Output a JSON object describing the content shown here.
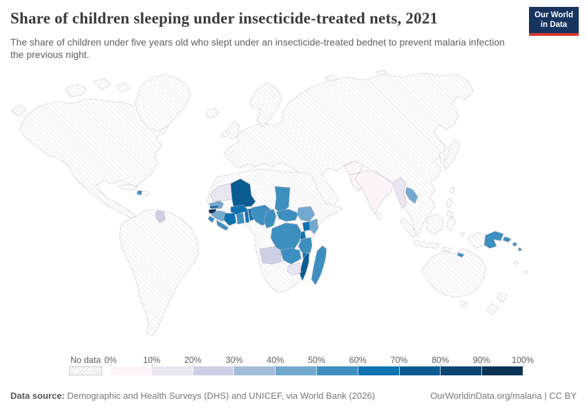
{
  "header": {
    "title": "Share of children sleeping under insecticide-treated nets, 2021",
    "subtitle": "The share of children under five years old who slept under an insecticide-treated bednet to prevent malaria infection the previous night.",
    "logo": {
      "line1": "Our World",
      "line2": "in Data",
      "bg_color": "#16345f",
      "accent_color": "#dd392c"
    }
  },
  "chart_data": {
    "type": "choropleth_map",
    "metric": "Share of children under five who slept under an insecticide-treated bednet the previous night",
    "year": "2021",
    "legend": {
      "no_data_label": "No data",
      "tick_labels": [
        "0%",
        "10%",
        "20%",
        "30%",
        "40%",
        "50%",
        "60%",
        "70%",
        "80%",
        "90%",
        "100%"
      ],
      "bin_colors": [
        "#fdf4f9",
        "#e9e5f1",
        "#cdd0e5",
        "#a3bcd9",
        "#74a9cf",
        "#3d8fc0",
        "#0f72b0",
        "#0b5c93",
        "#0c4675",
        "#0a3356"
      ],
      "no_data_hatch_line_color": "#d7d4dd",
      "border_color": "#b7b4c6"
    },
    "countries": [
      {
        "id": "mauritania",
        "name": "Mauritania",
        "value_bin": "10-20%",
        "color": "#e9e5f1"
      },
      {
        "id": "mali",
        "name": "Mali",
        "value_bin": "70-80%",
        "color": "#0b5c93"
      },
      {
        "id": "senegal",
        "name": "Senegal",
        "value_bin": "40-50%",
        "color": "#74a9cf"
      },
      {
        "id": "gambia",
        "name": "Gambia",
        "value_bin": "70-80%",
        "color": "#0b5c93"
      },
      {
        "id": "guinea-bissau",
        "name": "Guinea-Bissau",
        "value_bin": "90-100%",
        "color": "#0a3356"
      },
      {
        "id": "guinea",
        "name": "Guinea",
        "value_bin": "40-50%",
        "color": "#74a9cf"
      },
      {
        "id": "sierra-leone",
        "name": "Sierra Leone",
        "value_bin": "50-60%",
        "color": "#3d8fc0"
      },
      {
        "id": "liberia",
        "name": "Liberia",
        "value_bin": "50-60%",
        "color": "#3d8fc0"
      },
      {
        "id": "cote-divoire",
        "name": "Cote d'Ivoire",
        "value_bin": "60-70%",
        "color": "#0f72b0"
      },
      {
        "id": "ghana",
        "name": "Ghana",
        "value_bin": "50-60%",
        "color": "#3d8fc0"
      },
      {
        "id": "burkina-faso",
        "name": "Burkina Faso",
        "value_bin": "60-70%",
        "color": "#0f72b0"
      },
      {
        "id": "togo",
        "name": "Togo",
        "value_bin": "60-70%",
        "color": "#0f72b0"
      },
      {
        "id": "benin",
        "name": "Benin",
        "value_bin": "60-70%",
        "color": "#0f72b0"
      },
      {
        "id": "nigeria",
        "name": "Nigeria",
        "value_bin": "50-60%",
        "color": "#3d8fc0"
      },
      {
        "id": "chad",
        "name": "Chad",
        "value_bin": "50-60%",
        "color": "#3d8fc0"
      },
      {
        "id": "cameroon",
        "name": "Cameroon",
        "value_bin": "50-60%",
        "color": "#3d8fc0"
      },
      {
        "id": "central-african-republic",
        "name": "Central African Republic",
        "value_bin": "50-60%",
        "color": "#3d8fc0"
      },
      {
        "id": "south-sudan",
        "name": "South Sudan",
        "value_bin": "40-50%",
        "color": "#74a9cf"
      },
      {
        "id": "uganda",
        "name": "Uganda",
        "value_bin": "60-70%",
        "color": "#0f72b0"
      },
      {
        "id": "kenya",
        "name": "Kenya",
        "value_bin": "40-50%",
        "color": "#74a9cf"
      },
      {
        "id": "rwanda-burundi",
        "name": "Rwanda & Burundi",
        "value_bin": "60-70%",
        "color": "#0f72b0"
      },
      {
        "id": "dr-congo",
        "name": "Democratic Republic of Congo",
        "value_bin": "50-60%",
        "color": "#3d8fc0"
      },
      {
        "id": "tanzania",
        "name": "Tanzania",
        "value_bin": "50-60%",
        "color": "#3d8fc0"
      },
      {
        "id": "zambia",
        "name": "Zambia",
        "value_bin": "50-60%",
        "color": "#3d8fc0"
      },
      {
        "id": "malawi",
        "name": "Malawi",
        "value_bin": "60-70%",
        "color": "#0f72b0"
      },
      {
        "id": "mozambique",
        "name": "Mozambique",
        "value_bin": "70-80%",
        "color": "#0b5c93"
      },
      {
        "id": "zimbabwe",
        "name": "Zimbabwe",
        "value_bin": "10-20%",
        "color": "#e9e5f1"
      },
      {
        "id": "angola",
        "name": "Angola",
        "value_bin": "20-30%",
        "color": "#cdd0e5"
      },
      {
        "id": "madagascar",
        "name": "Madagascar",
        "value_bin": "50-60%",
        "color": "#3d8fc0"
      },
      {
        "id": "haiti",
        "name": "Haiti",
        "value_bin": "50-60%",
        "color": "#3d8fc0"
      },
      {
        "id": "guyana",
        "name": "Guyana",
        "value_bin": "20-30%",
        "color": "#cdd0e5"
      },
      {
        "id": "afghanistan",
        "name": "Afghanistan",
        "value_bin": "0-10%",
        "color": "#fdf4f9"
      },
      {
        "id": "pakistan",
        "name": "Pakistan",
        "value_bin": "0-10%",
        "color": "#fdf4f9"
      },
      {
        "id": "india",
        "name": "India",
        "value_bin": "0-10%",
        "color": "#fdf4f9"
      },
      {
        "id": "myanmar",
        "name": "Myanmar",
        "value_bin": "10-20%",
        "color": "#e9e5f1"
      },
      {
        "id": "laos",
        "name": "Laos",
        "value_bin": "40-50%",
        "color": "#74a9cf"
      },
      {
        "id": "papua-new-guinea",
        "name": "Papua New Guinea",
        "value_bin": "50-60%",
        "color": "#3d8fc0"
      },
      {
        "id": "solomon-islands",
        "name": "Solomon Islands",
        "value_bin": "50-60%",
        "color": "#3d8fc0"
      },
      {
        "id": "timor-leste",
        "name": "Timor-Leste",
        "value_bin": "50-60%",
        "color": "#3d8fc0"
      }
    ]
  },
  "footer": {
    "source_label": "Data source:",
    "source_text": " Demographic and Health Surveys (DHS) and UNICEF, via World Bank (2026)",
    "attribution": "OurWorldinData.org/malaria | CC BY"
  }
}
